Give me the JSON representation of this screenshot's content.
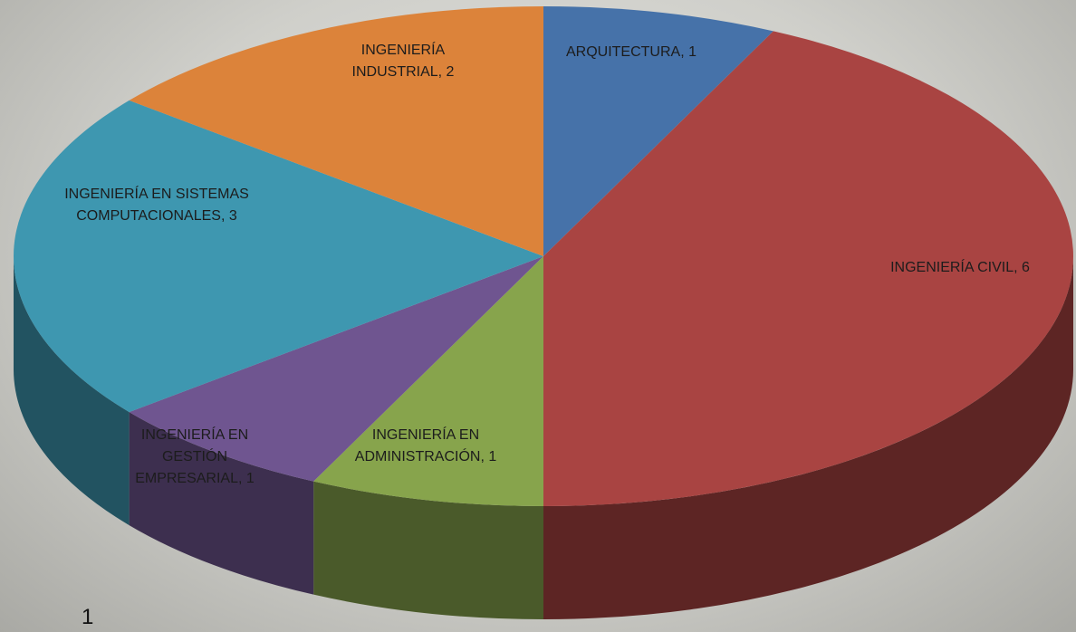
{
  "chart_data": {
    "type": "pie3d",
    "values": [
      1,
      6,
      1,
      1,
      3,
      2
    ],
    "value_labels": [
      "ARQUITECTURA, 1",
      "INGENIERÍA CIVIL, 6",
      "INGENIERÍA EN ADMINISTRACIÓN, 1",
      "INGENIERÍA EN GESTIÓN EMPRESARIAL, 1",
      "INGENIERÍA EN SISTEMAS COMPUTACIONALES, 3",
      "INGENIERÍA INDUSTRIAL, 2"
    ],
    "colors": [
      "#4672a9",
      "#a94442",
      "#87a44c",
      "#6f5590",
      "#3e97b0",
      "#dc833a"
    ]
  },
  "footer": {
    "page_number": "1"
  }
}
